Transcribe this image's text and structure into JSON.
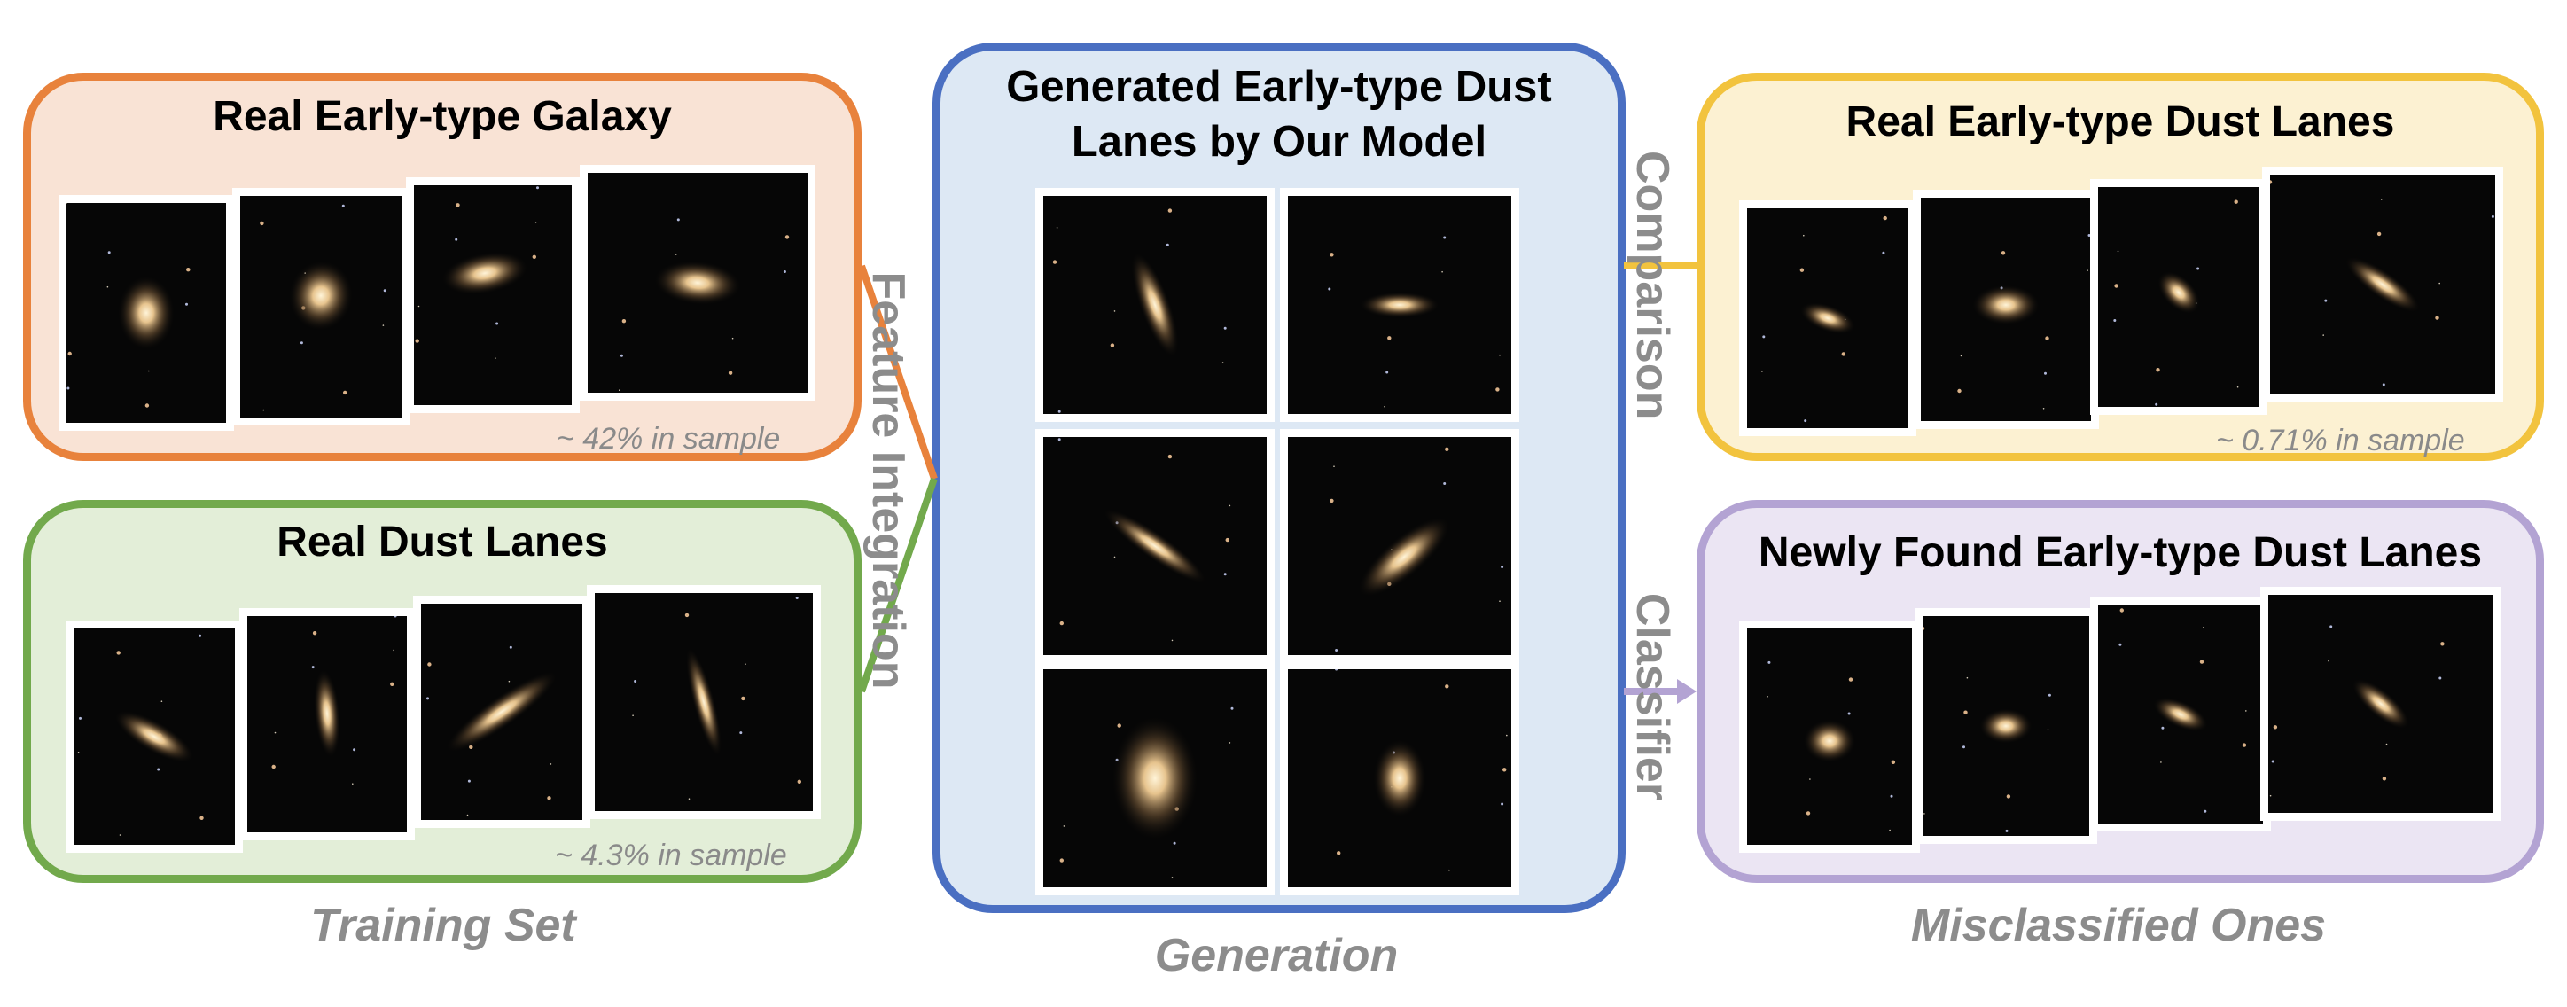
{
  "colors": {
    "orange": "#e8823c",
    "orange_fill": "#f9e3d5",
    "green": "#72a94c",
    "green_fill": "#e3eed8",
    "blue": "#4a6fc2",
    "blue_fill": "#dde8f4",
    "yellow": "#f2c33e",
    "yellow_fill": "#fcf1d2",
    "purple": "#b3a3d3",
    "purple_fill": "#ebe5f3"
  },
  "panels": {
    "early_type": {
      "title": "Real Early-type Galaxy",
      "note": "~ 42% in sample"
    },
    "dust_lanes": {
      "title": "Real Dust Lanes",
      "note": "~ 4.3% in sample"
    },
    "generated": {
      "title_line1": "Generated Early-type Dust",
      "title_line2": "Lanes by Our Model"
    },
    "real_edl": {
      "title": "Real Early-type Dust Lanes",
      "note": "~ 0.71% in sample"
    },
    "new_edl": {
      "title": "Newly Found Early-type Dust Lanes"
    }
  },
  "labels": {
    "feature_integration": "Feature Integration",
    "comparison": "Comparison",
    "classifier": "Classifier"
  },
  "captions": {
    "training": "Training Set",
    "generation": "Generation",
    "misclassified": "Misclassified Ones"
  },
  "icons": [
    "galaxy-image-icon"
  ]
}
